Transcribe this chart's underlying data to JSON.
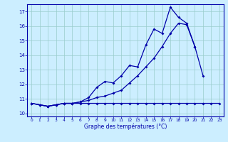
{
  "xlabel": "Graphe des températures (°C)",
  "background_color": "#cceeff",
  "grid_color": "#99cccc",
  "line_color": "#0000aa",
  "ylim": [
    9.8,
    17.5
  ],
  "xlim": [
    -0.5,
    23.5
  ],
  "yticks": [
    10,
    11,
    12,
    13,
    14,
    15,
    16,
    17
  ],
  "xticks": [
    0,
    1,
    2,
    3,
    4,
    5,
    6,
    7,
    8,
    9,
    10,
    11,
    12,
    13,
    14,
    15,
    16,
    17,
    18,
    19,
    20,
    21,
    22,
    23
  ],
  "hours": [
    0,
    1,
    2,
    3,
    4,
    5,
    6,
    7,
    8,
    9,
    10,
    11,
    12,
    13,
    14,
    15,
    16,
    17,
    18,
    19,
    20,
    21,
    22,
    23
  ],
  "line1": [
    10.7,
    10.6,
    10.5,
    10.6,
    10.7,
    10.7,
    10.8,
    10.9,
    11.1,
    11.2,
    11.4,
    11.6,
    12.1,
    12.6,
    13.2,
    13.8,
    14.6,
    15.5,
    16.2,
    16.1,
    14.6,
    12.6,
    null,
    null
  ],
  "line2": [
    10.7,
    10.6,
    10.5,
    10.6,
    10.7,
    10.7,
    10.8,
    11.1,
    11.8,
    12.2,
    12.1,
    12.6,
    13.3,
    13.2,
    14.7,
    15.8,
    15.5,
    17.3,
    16.6,
    16.2,
    14.6,
    null,
    null,
    null
  ],
  "line3": [
    10.7,
    10.6,
    10.5,
    10.6,
    10.7,
    10.7,
    10.7,
    10.7,
    10.7,
    10.7,
    10.7,
    10.7,
    10.7,
    10.7,
    10.7,
    10.7,
    10.7,
    10.7,
    10.7,
    10.7,
    10.7,
    10.7,
    10.7,
    10.7
  ]
}
